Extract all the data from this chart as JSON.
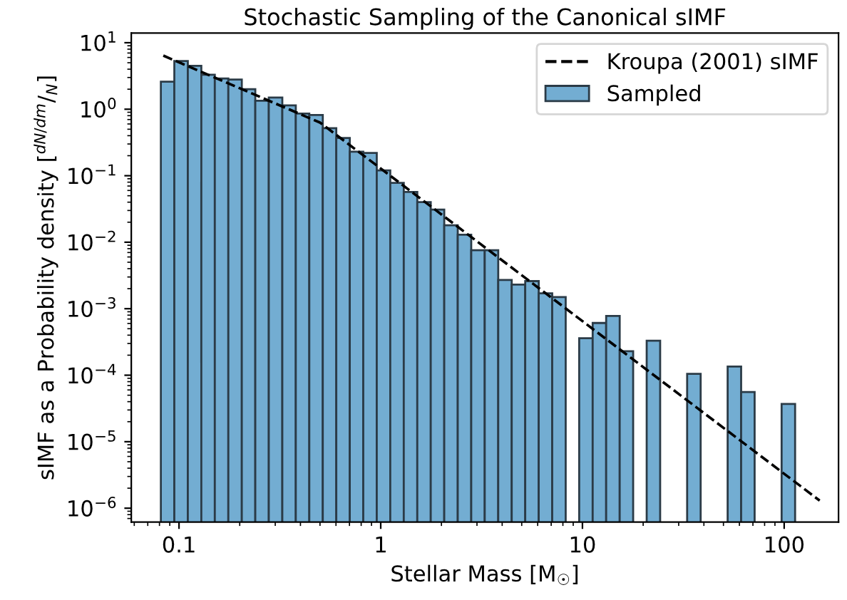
{
  "chart_data": {
    "type": "histogram",
    "title": "Stochastic Sampling of the Canonical sIMF",
    "xlabel": "Stellar Mass [M$_{☉}$]",
    "ylabel": "sIMF as a Probability density [$^{dN/dm}$/$_{N}$]",
    "log": "xy",
    "xlim": [
      0.058,
      186
    ],
    "ylim": [
      6.2e-07,
      14
    ],
    "xticks": [
      0.1,
      1,
      10,
      100
    ],
    "yticks": [
      {
        "value": 1e-06,
        "label": "10$^{−6}$"
      },
      {
        "value": 1e-05,
        "label": "10$^{−5}$"
      },
      {
        "value": 0.0001,
        "label": "10$^{−4}$"
      },
      {
        "value": 0.001,
        "label": "10$^{−3}$"
      },
      {
        "value": 0.01,
        "label": "10$^{−2}$"
      },
      {
        "value": 0.1,
        "label": "10$^{−1}$"
      },
      {
        "value": 1,
        "label": "10$^{0}$"
      },
      {
        "value": 10,
        "label": "10$^{1}$"
      }
    ],
    "legend": "top right",
    "bins": [
      0.0813,
      0.0948,
      0.1106,
      0.129,
      0.1505,
      0.1756,
      0.2048,
      0.2389,
      0.2787,
      0.3252,
      0.3793,
      0.4425,
      0.5162,
      0.6022,
      0.7025,
      0.8194,
      0.9559,
      1.115,
      1.301,
      1.518,
      1.77,
      2.065,
      2.409,
      2.81,
      3.278,
      3.824,
      4.461,
      5.204,
      6.071,
      7.082,
      8.26,
      9.636,
      11.24,
      13.11,
      15.3,
      17.84,
      20.82,
      24.28,
      28.33,
      33.04,
      38.55,
      44.97,
      52.46,
      61.19,
      71.38,
      83.28,
      97.14,
      113.3
    ],
    "series": [
      {
        "name": "Sampled",
        "color": "#73add2",
        "values": [
          2.6,
          5.3,
          4.5,
          3.3,
          2.9,
          2.8,
          2.0,
          1.34,
          1.5,
          1.14,
          0.86,
          0.82,
          0.52,
          0.37,
          0.23,
          0.22,
          0.12,
          0.078,
          0.057,
          0.04,
          0.031,
          0.018,
          0.013,
          0.0076,
          0.0076,
          0.0027,
          0.0023,
          0.0026,
          0.0017,
          0.0015,
          null,
          0.00036,
          0.00061,
          0.00078,
          0.00023,
          null,
          0.00033,
          null,
          null,
          0.000105,
          null,
          null,
          0.000135,
          5.6e-05,
          null,
          null,
          3.7e-05
        ]
      },
      {
        "name": "Kroupa (2001) sIMF",
        "type": "line",
        "color": "#000000",
        "line_style": "dashed",
        "x": [
          0.0836,
          0.5,
          150
        ],
        "values": [
          6.4,
          0.63,
          1.3e-06
        ]
      }
    ]
  }
}
